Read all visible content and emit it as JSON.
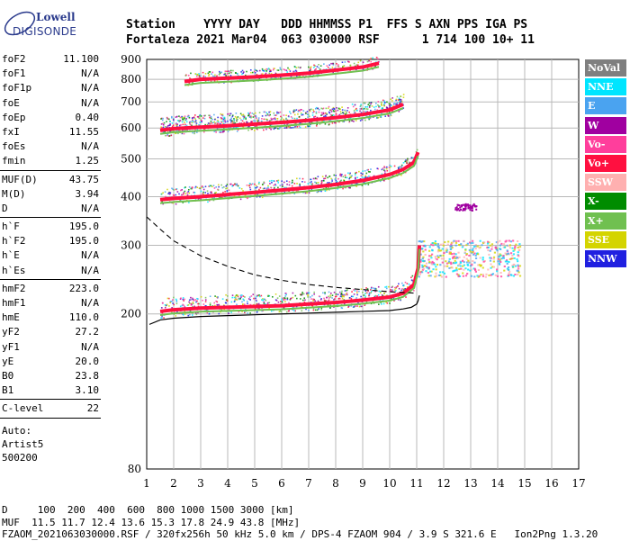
{
  "logo": {
    "line1": "Lowell",
    "line2": "DIGISONDE"
  },
  "header": {
    "labels": "Station    YYYY DAY   DDD HHMMSS P1  FFS S AXN PPS IGA PS",
    "values": "Fortaleza 2021 Mar04  063 030000 RSF      1 714 100 10+ 11"
  },
  "params": {
    "group1": [
      [
        "foF2",
        "11.100"
      ],
      [
        "foF1",
        "N/A"
      ],
      [
        "foF1p",
        "N/A"
      ],
      [
        "foE",
        "N/A"
      ],
      [
        "foEp",
        "0.40"
      ],
      [
        "fxI",
        "11.55"
      ],
      [
        "foEs",
        "N/A"
      ],
      [
        "fmin",
        "1.25"
      ]
    ],
    "group2": [
      [
        "MUF(D)",
        "43.75"
      ],
      [
        "M(D)",
        "3.94"
      ],
      [
        "D",
        "N/A"
      ]
    ],
    "group3": [
      [
        "h`F",
        "195.0"
      ],
      [
        "h`F2",
        "195.0"
      ],
      [
        "h`E",
        "N/A"
      ],
      [
        "h`Es",
        "N/A"
      ]
    ],
    "group4": [
      [
        "hmF2",
        "223.0"
      ],
      [
        "hmF1",
        "N/A"
      ],
      [
        "hmE",
        "110.0"
      ],
      [
        "yF2",
        "27.2"
      ],
      [
        "yF1",
        "N/A"
      ],
      [
        "yE",
        "20.0"
      ],
      [
        "B0",
        "23.8"
      ],
      [
        "B1",
        "3.10"
      ]
    ],
    "group5": [
      [
        "C-level",
        "22"
      ]
    ],
    "auto": [
      "Auto:",
      "Artist5",
      "500200"
    ]
  },
  "footer": {
    "line1": "D     100  200  400  600  800 1000 1500 3000 [km]",
    "line2": "MUF  11.5 11.7 12.4 13.6 15.3 17.8 24.9 43.8 [MHz]",
    "line3": "FZAOM_2021063030000.RSF / 320fx256h 50 kHz 5.0 km / DPS-4 FZAOM 904 / 3.9 S 321.6 E   Ion2Png 1.3.20"
  },
  "legend": [
    {
      "label": "NoVal",
      "color": "#7f7f7f"
    },
    {
      "label": "NNE",
      "color": "#00e5ff"
    },
    {
      "label": "E",
      "color": "#4aa3f0"
    },
    {
      "label": "W",
      "color": "#a000a0"
    },
    {
      "label": "Vo-",
      "color": "#ff3e9c"
    },
    {
      "label": "Vo+",
      "color": "#ff1040"
    },
    {
      "label": "SSW",
      "color": "#ffb0b0"
    },
    {
      "label": "X-",
      "color": "#008c00"
    },
    {
      "label": "X+",
      "color": "#70c050"
    },
    {
      "label": "SSE",
      "color": "#d4d400"
    },
    {
      "label": "NNW",
      "color": "#2020e0"
    }
  ],
  "chart_data": {
    "type": "scatter",
    "xlabel": "",
    "ylabel": "",
    "xlim": [
      1,
      17
    ],
    "ylim": [
      80,
      900
    ],
    "yscale": "log",
    "xticks": [
      1,
      2,
      3,
      4,
      5,
      6,
      7,
      8,
      9,
      10,
      11,
      12,
      13,
      14,
      15,
      16,
      17
    ],
    "yticks": [
      80,
      200,
      300,
      400,
      500,
      600,
      700,
      800,
      900
    ],
    "grid": true,
    "traces": [
      {
        "name": "O-trace 1st hop",
        "color": "#ff1040",
        "x": [
          1.5,
          2,
          3,
          4,
          5,
          6,
          7,
          8,
          9,
          10,
          10.5,
          10.9,
          11.05,
          11.1
        ],
        "y": [
          203,
          205,
          207,
          208,
          209,
          210,
          212,
          214,
          217,
          221,
          226,
          238,
          262,
          300
        ]
      },
      {
        "name": "O-trace 2nd hop",
        "color": "#ff1040",
        "x": [
          1.5,
          2,
          3,
          4,
          5,
          6,
          7,
          8,
          9,
          10,
          10.5,
          10.9,
          11.05
        ],
        "y": [
          393,
          396,
          400,
          405,
          410,
          416,
          422,
          430,
          440,
          456,
          470,
          490,
          520
        ]
      },
      {
        "name": "O-trace 3rd hop",
        "color": "#ff1040",
        "x": [
          1.5,
          2,
          3,
          4,
          5,
          6,
          7,
          8,
          9,
          10,
          10.5
        ],
        "y": [
          592,
          598,
          603,
          608,
          614,
          620,
          628,
          638,
          650,
          668,
          690
        ]
      },
      {
        "name": "O-trace 4th hop",
        "color": "#ff1040",
        "x": [
          2.4,
          3,
          4,
          5,
          6,
          7,
          8,
          9,
          9.6
        ],
        "y": [
          790,
          800,
          806,
          812,
          820,
          830,
          845,
          860,
          880
        ]
      }
    ],
    "profile": {
      "x": [
        1.1,
        1.5,
        2,
        3,
        4,
        5,
        6,
        7,
        8,
        9,
        10,
        10.5,
        10.8,
        11.0,
        11.05,
        11.1
      ],
      "y": [
        188,
        193,
        195,
        197,
        198,
        199,
        200,
        201,
        202,
        203,
        204,
        206,
        208,
        212,
        216,
        223
      ]
    },
    "muf_curve": {
      "x": [
        1.0,
        1.5,
        2,
        3,
        4,
        5,
        6,
        7,
        8,
        9,
        10,
        10.5,
        11.0
      ],
      "y": [
        355,
        330,
        308,
        282,
        265,
        252,
        244,
        238,
        234,
        231,
        228,
        227,
        226
      ]
    }
  }
}
